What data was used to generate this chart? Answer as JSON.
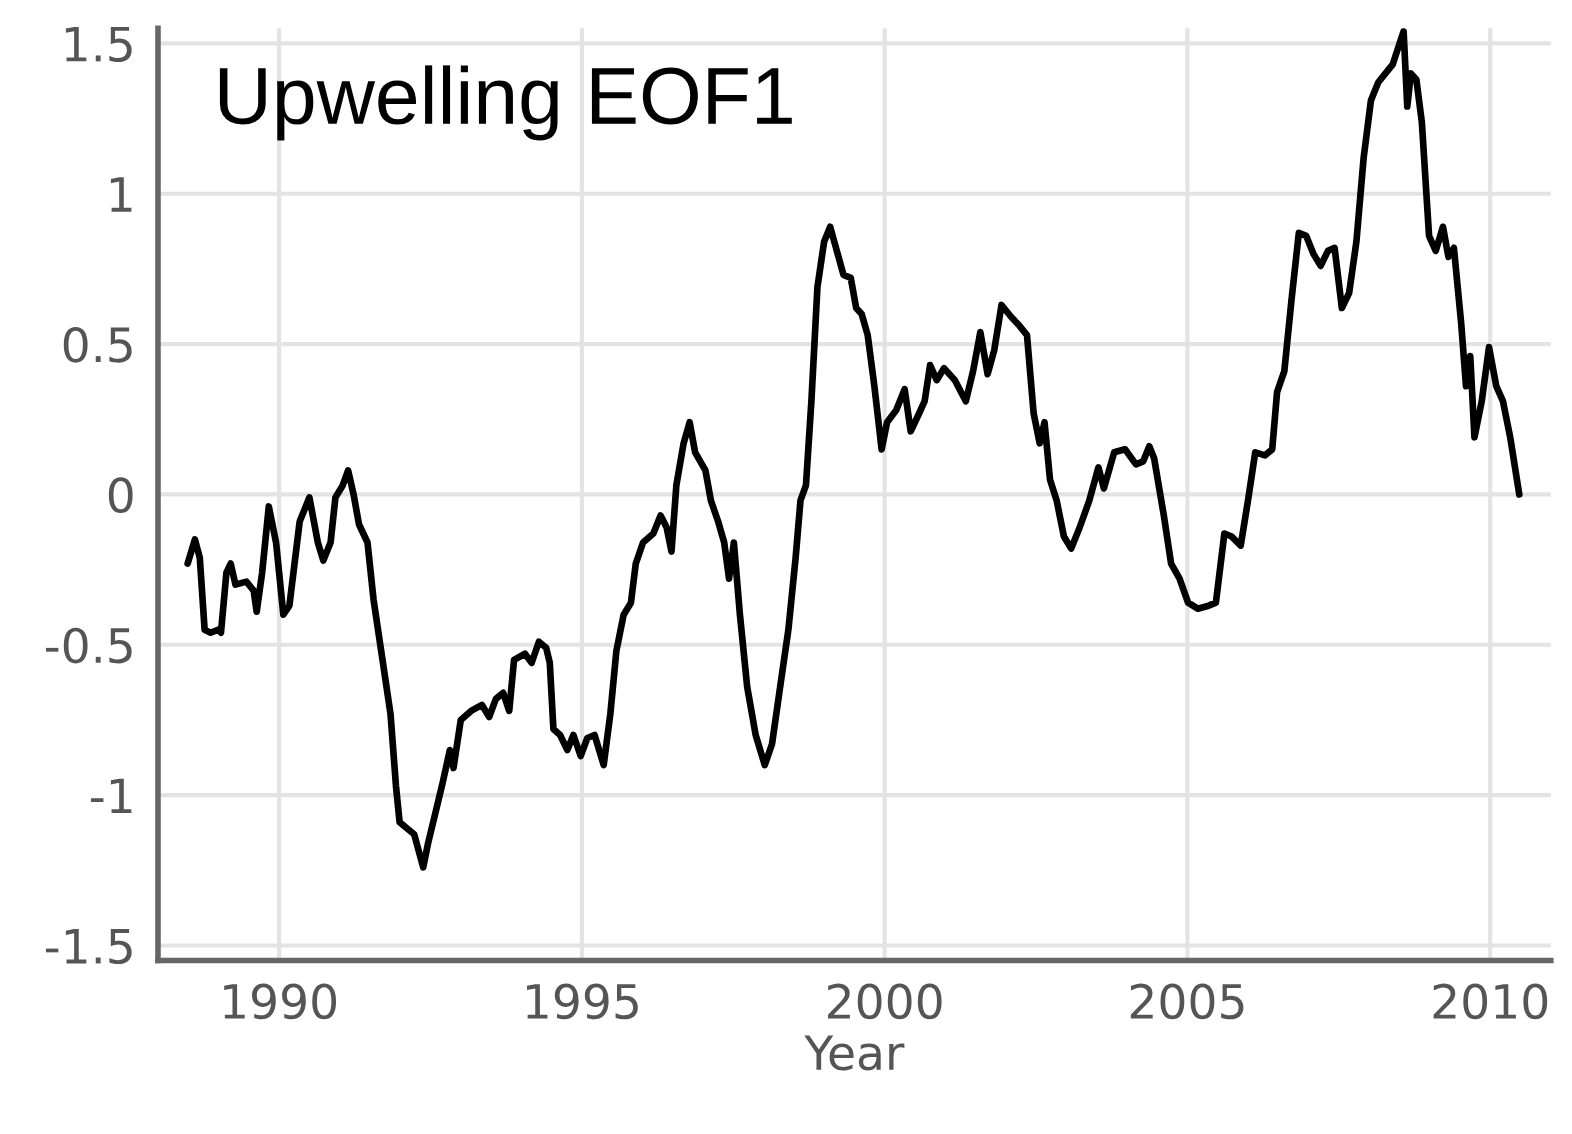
{
  "chart_data": {
    "type": "line",
    "xlabel": "Year",
    "annotations": [
      "Upwelling EOF1"
    ],
    "x": [
      1988.49,
      1988.61,
      1988.69,
      1988.77,
      1988.87,
      1988.99,
      1989.04,
      1989.13,
      1989.2,
      1989.28,
      1989.46,
      1989.58,
      1989.63,
      1989.72,
      1989.83,
      1989.95,
      1990.07,
      1990.17,
      1990.34,
      1990.5,
      1990.64,
      1990.73,
      1990.85,
      1990.93,
      1991.05,
      1991.14,
      1991.23,
      1991.32,
      1991.46,
      1991.56,
      1991.7,
      1991.84,
      1991.93,
      1991.99,
      1992.11,
      1992.23,
      1992.38,
      1992.46,
      1992.58,
      1992.7,
      1992.82,
      1992.88,
      1993.0,
      1993.17,
      1993.35,
      1993.47,
      1993.58,
      1993.7,
      1993.8,
      1993.88,
      1994.06,
      1994.17,
      1994.29,
      1994.41,
      1994.47,
      1994.53,
      1994.64,
      1994.76,
      1994.86,
      1994.98,
      1995.09,
      1995.21,
      1995.36,
      1995.47,
      1995.57,
      1995.69,
      1995.81,
      1995.89,
      1996.01,
      1996.18,
      1996.3,
      1996.4,
      1996.48,
      1996.56,
      1996.68,
      1996.78,
      1996.87,
      1997.04,
      1997.13,
      1997.25,
      1997.35,
      1997.43,
      1997.51,
      1997.61,
      1997.73,
      1997.87,
      1998.02,
      1998.14,
      1998.26,
      1998.41,
      1998.53,
      1998.61,
      1998.7,
      1998.79,
      1998.89,
      1999.0,
      1999.1,
      1999.21,
      1999.32,
      1999.44,
      1999.53,
      1999.62,
      1999.72,
      1999.83,
      1999.95,
      2000.04,
      2000.19,
      2000.33,
      2000.43,
      2000.57,
      2000.66,
      2000.75,
      2000.86,
      2000.98,
      2001.16,
      2001.34,
      2001.46,
      2001.58,
      2001.7,
      2001.81,
      2001.93,
      2002.09,
      2002.23,
      2002.35,
      2002.46,
      2002.56,
      2002.64,
      2002.73,
      2002.84,
      2002.96,
      2003.08,
      2003.22,
      2003.38,
      2003.53,
      2003.62,
      2003.79,
      2003.97,
      2004.15,
      2004.27,
      2004.37,
      2004.45,
      2004.61,
      2004.73,
      2004.87,
      2005.01,
      2005.17,
      2005.35,
      2005.47,
      2005.61,
      2005.73,
      2005.88,
      2006.0,
      2006.12,
      2006.28,
      2006.4,
      2006.48,
      2006.6,
      2006.72,
      2006.84,
      2006.96,
      2007.08,
      2007.2,
      2007.32,
      2007.43,
      2007.55,
      2007.67,
      2007.79,
      2007.91,
      2008.03,
      2008.15,
      2008.27,
      2008.39,
      2008.47,
      2008.57,
      2008.63,
      2008.69,
      2008.78,
      2008.87,
      2008.99,
      2009.1,
      2009.22,
      2009.31,
      2009.4,
      2009.52,
      2009.6,
      2009.67,
      2009.74,
      2009.86,
      2009.98,
      2010.1,
      2010.21,
      2010.33,
      2010.48
    ],
    "series": [
      {
        "color": "#000000",
        "values": [
          -0.23,
          -0.15,
          -0.21,
          -0.45,
          -0.46,
          -0.45,
          -0.46,
          -0.26,
          -0.23,
          -0.3,
          -0.29,
          -0.32,
          -0.39,
          -0.26,
          -0.04,
          -0.16,
          -0.4,
          -0.37,
          -0.09,
          -0.01,
          -0.16,
          -0.22,
          -0.16,
          -0.01,
          0.03,
          0.08,
          0.0,
          -0.1,
          -0.16,
          -0.35,
          -0.54,
          -0.73,
          -0.97,
          -1.09,
          -1.11,
          -1.13,
          -1.24,
          -1.16,
          -1.06,
          -0.96,
          -0.85,
          -0.91,
          -0.75,
          -0.72,
          -0.7,
          -0.74,
          -0.68,
          -0.66,
          -0.72,
          -0.55,
          -0.53,
          -0.56,
          -0.49,
          -0.51,
          -0.56,
          -0.78,
          -0.8,
          -0.85,
          -0.8,
          -0.87,
          -0.81,
          -0.8,
          -0.9,
          -0.73,
          -0.52,
          -0.4,
          -0.36,
          -0.23,
          -0.16,
          -0.13,
          -0.07,
          -0.11,
          -0.19,
          0.03,
          0.17,
          0.24,
          0.14,
          0.08,
          -0.02,
          -0.09,
          -0.16,
          -0.28,
          -0.16,
          -0.4,
          -0.64,
          -0.8,
          -0.9,
          -0.83,
          -0.66,
          -0.45,
          -0.21,
          -0.02,
          0.03,
          0.31,
          0.69,
          0.84,
          0.89,
          0.81,
          0.73,
          0.72,
          0.62,
          0.6,
          0.53,
          0.36,
          0.15,
          0.24,
          0.28,
          0.35,
          0.21,
          0.27,
          0.31,
          0.43,
          0.38,
          0.42,
          0.38,
          0.31,
          0.41,
          0.54,
          0.4,
          0.48,
          0.63,
          0.59,
          0.56,
          0.53,
          0.27,
          0.17,
          0.24,
          0.05,
          -0.02,
          -0.14,
          -0.18,
          -0.11,
          -0.02,
          0.09,
          0.02,
          0.14,
          0.15,
          0.1,
          0.11,
          0.16,
          0.12,
          -0.07,
          -0.23,
          -0.28,
          -0.36,
          -0.38,
          -0.37,
          -0.36,
          -0.13,
          -0.14,
          -0.17,
          -0.02,
          0.14,
          0.13,
          0.15,
          0.34,
          0.41,
          0.65,
          0.87,
          0.86,
          0.8,
          0.76,
          0.81,
          0.82,
          0.62,
          0.67,
          0.84,
          1.12,
          1.31,
          1.37,
          1.4,
          1.43,
          1.48,
          1.54,
          1.29,
          1.4,
          1.38,
          1.24,
          0.86,
          0.81,
          0.89,
          0.79,
          0.82,
          0.57,
          0.36,
          0.46,
          0.19,
          0.31,
          0.49,
          0.36,
          0.31,
          0.19,
          0.0
        ]
      }
    ],
    "xlim": [
      1988,
      2011
    ],
    "ylim": [
      -1.55,
      1.55
    ],
    "xticks": [
      1990,
      1995,
      2000,
      2005,
      2010
    ],
    "yticks": [
      -1.5,
      -1,
      -0.5,
      0,
      0.5,
      1,
      1.5
    ],
    "grid": true
  }
}
